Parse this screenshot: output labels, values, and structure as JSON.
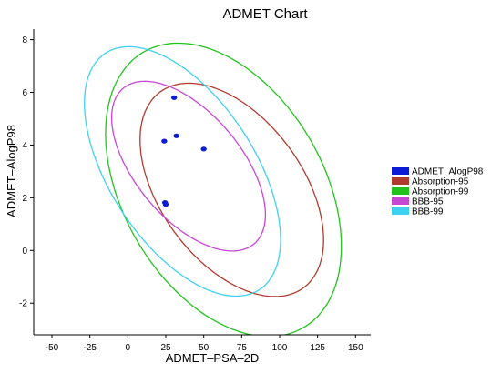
{
  "chart_data": {
    "type": "scatter",
    "title": "ADMET Chart",
    "xlabel": "ADMET–PSA–2D",
    "ylabel": "ADMET–AlogP98",
    "xlim": [
      -62,
      160
    ],
    "ylim": [
      -3.2,
      8.4
    ],
    "x_ticks": [
      "-50",
      "-25",
      "0",
      "25",
      "50",
      "75",
      "100",
      "125",
      "150"
    ],
    "y_ticks": [
      "-2",
      "0",
      "2",
      "4",
      "6",
      "8"
    ],
    "x_tick_values": [
      -50,
      -25,
      0,
      25,
      50,
      75,
      100,
      125,
      150
    ],
    "y_tick_values": [
      -2,
      0,
      2,
      4,
      6,
      8
    ],
    "grid": false,
    "legend_position": "right",
    "points": {
      "name": "ADMET_AlogP98",
      "color": "#0b1bd6",
      "x": [
        30.5,
        32,
        24,
        50,
        24.5,
        25
      ],
      "y": [
        5.8,
        4.35,
        4.15,
        3.85,
        1.82,
        1.75
      ]
    },
    "ellipses": [
      {
        "name": "Absorption-95",
        "color": "#b03a2e",
        "center": [
          68.5,
          2.3
        ],
        "semi_axes": [
          80,
          2.7
        ],
        "rotation_deg": 54
      },
      {
        "name": "Absorption-99",
        "color": "#22c21e",
        "center": [
          63,
          2.3
        ],
        "semi_axes": [
          105,
          3.8
        ],
        "rotation_deg": 60
      },
      {
        "name": "BBB-95",
        "color": "#c846d6",
        "center": [
          40,
          3.2
        ],
        "semi_axes": [
          67,
          2.0
        ],
        "rotation_deg": 50
      },
      {
        "name": "BBB-99",
        "color": "#3fd0f0",
        "center": [
          36,
          3.0
        ],
        "semi_axes": [
          93,
          2.75
        ],
        "rotation_deg": 57
      }
    ],
    "legend": [
      {
        "label": "ADMET_AlogP98",
        "color": "#0b1bd6"
      },
      {
        "label": "Absorption-95",
        "color": "#b03a2e"
      },
      {
        "label": "Absorption-99",
        "color": "#22c21e"
      },
      {
        "label": "BBB-95",
        "color": "#c846d6"
      },
      {
        "label": "BBB-99",
        "color": "#3fd0f0"
      }
    ]
  }
}
